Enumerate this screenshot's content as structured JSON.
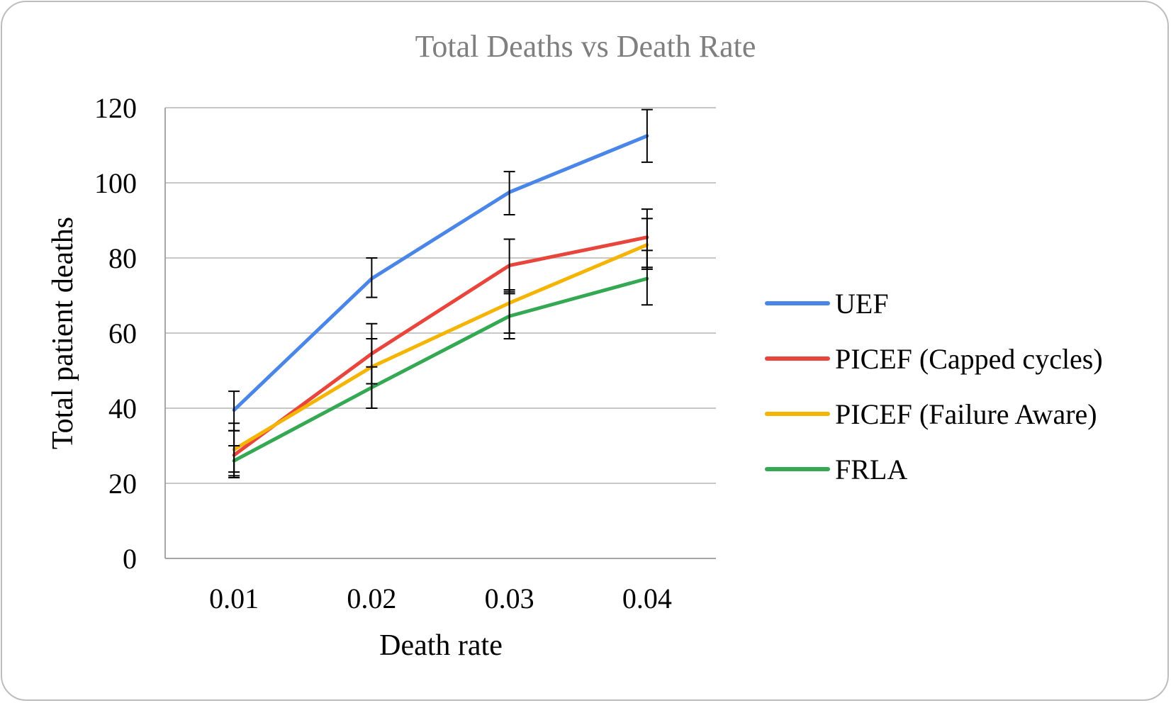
{
  "chart_data": {
    "type": "line",
    "title": "Total Deaths vs Death Rate",
    "xlabel": "Death rate",
    "ylabel": "Total patient deaths",
    "categories": [
      "0.01",
      "0.02",
      "0.03",
      "0.04"
    ],
    "ylim": [
      0,
      120
    ],
    "yticks": [
      0,
      20,
      40,
      60,
      80,
      100,
      120
    ],
    "grid": "horizontal",
    "legend_position": "right",
    "series": [
      {
        "name": "UEF",
        "color": "#4a86e8",
        "values": [
          39.5,
          74.5,
          97.5,
          112.5
        ],
        "error_low": [
          34,
          69.5,
          91.5,
          105.5
        ],
        "error_high": [
          44.5,
          80,
          103,
          119.5
        ]
      },
      {
        "name": "PICEF (Capped cycles)",
        "color": "#e8453c",
        "values": [
          27.5,
          54.5,
          78,
          85.5
        ],
        "error_low": [
          22,
          46.5,
          71,
          77.5
        ],
        "error_high": [
          34,
          62.5,
          85,
          93
        ]
      },
      {
        "name": "PICEF (Failure Aware)",
        "color": "#f4b400",
        "values": [
          29,
          51,
          68,
          83.5
        ],
        "error_low": [
          23,
          40,
          60,
          77
        ],
        "error_high": [
          36,
          58.5,
          71.5,
          90.5
        ]
      },
      {
        "name": "FRLA",
        "color": "#34a853",
        "values": [
          26,
          45.5,
          64.5,
          74.5
        ],
        "error_low": [
          21.5,
          40,
          58.5,
          67.5
        ],
        "error_high": [
          30,
          51,
          70.5,
          82
        ]
      }
    ]
  }
}
